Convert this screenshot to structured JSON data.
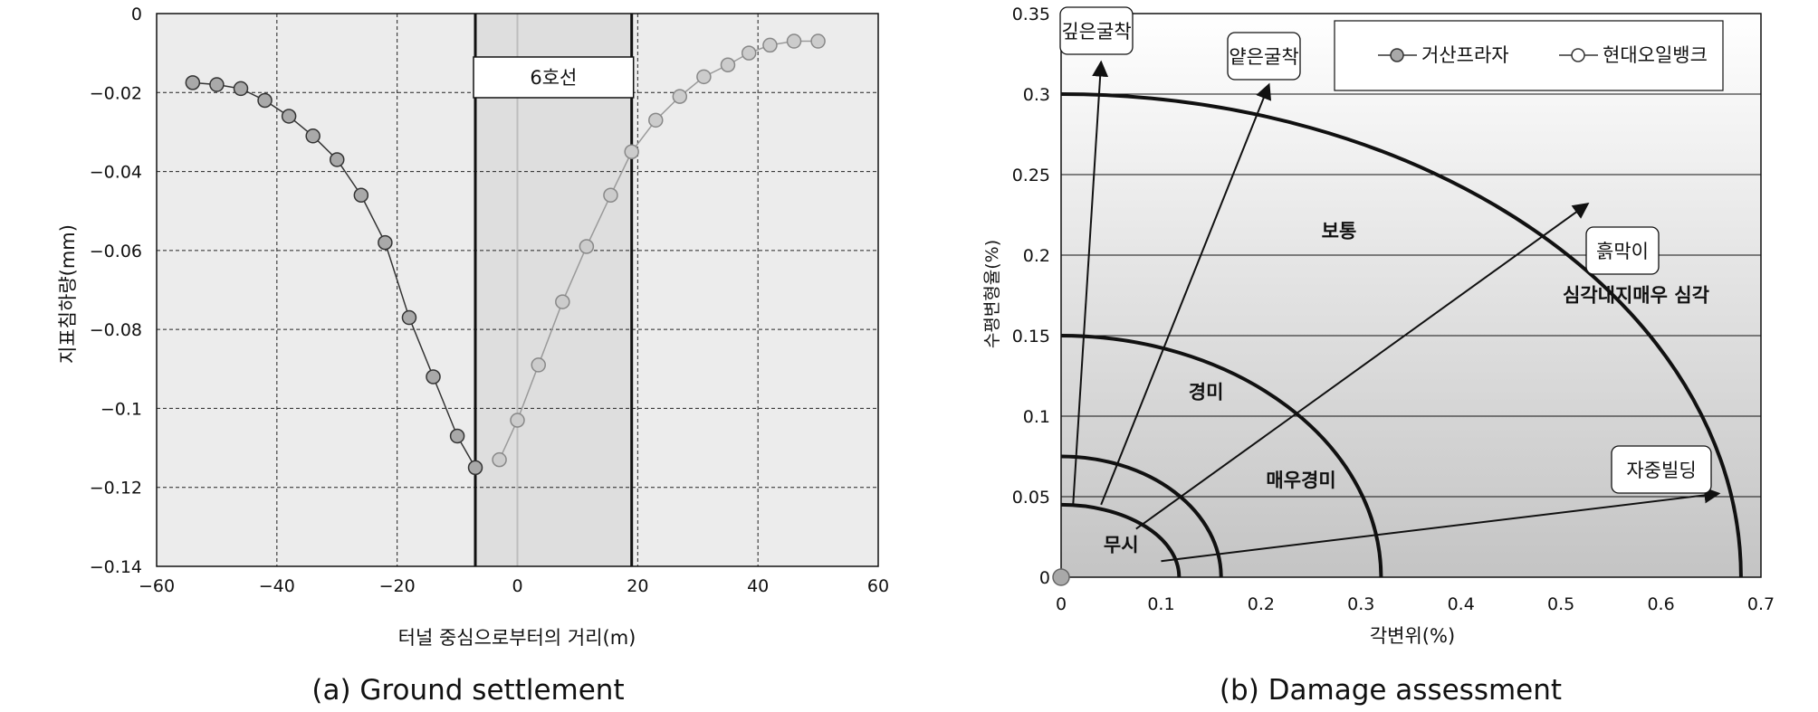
{
  "chart_data": [
    {
      "type": "line",
      "caption": "(a) Ground settlement",
      "xlabel": "터널 중심으로부터의 거리(m)",
      "ylabel": "지표침하량(mm)",
      "xlim": [
        -60,
        60
      ],
      "ylim": [
        -0.14,
        0
      ],
      "xticks": [
        "−60",
        "−40",
        "−20",
        "0",
        "20",
        "40",
        "60"
      ],
      "yticks": [
        "0",
        "−0.02",
        "−0.04",
        "−0.06",
        "−0.08",
        "−0.1",
        "−0.12",
        "−0.14"
      ],
      "grid": true,
      "tunnel_zone": {
        "label": "6호선",
        "x_range": [
          -7,
          19
        ],
        "center_x": 0
      },
      "series": [
        {
          "name": "",
          "marker_color": "#a9a9a9",
          "x": [
            -54,
            -50,
            -46,
            -42,
            -38,
            -34,
            -30,
            -26,
            -22,
            -18,
            -14,
            -10,
            -7
          ],
          "y": [
            -0.0175,
            -0.018,
            -0.019,
            -0.022,
            -0.026,
            -0.031,
            -0.037,
            -0.046,
            -0.058,
            -0.077,
            -0.092,
            -0.107,
            -0.115
          ]
        },
        {
          "name": "",
          "marker_color": "#cccccc",
          "x": [
            -3,
            0,
            3.5,
            7.5,
            11.5,
            15.5,
            19,
            23,
            27,
            31,
            35,
            38.5,
            42,
            46,
            50
          ],
          "y": [
            -0.113,
            -0.103,
            -0.089,
            -0.073,
            -0.059,
            -0.046,
            -0.035,
            -0.027,
            -0.021,
            -0.016,
            -0.013,
            -0.01,
            -0.008,
            -0.007,
            -0.007
          ]
        }
      ]
    },
    {
      "type": "scatter",
      "caption": "(b) Damage assessment",
      "xlabel": "각변위(%)",
      "ylabel": "수평변형율(%)",
      "xlim": [
        0,
        0.7
      ],
      "ylim": [
        0,
        0.35
      ],
      "xticks": [
        "0",
        "0.1",
        "0.2",
        "0.3",
        "0.4",
        "0.5",
        "0.6",
        "0.7"
      ],
      "yticks": [
        "0",
        "0.05",
        "0.1",
        "0.15",
        "0.2",
        "0.25",
        "0.3",
        "0.35"
      ],
      "legend": {
        "position": "top-right",
        "entries": [
          {
            "label": "거산프라자",
            "marker_color": "#a9a9a9"
          },
          {
            "label": "현대오일뱅크",
            "marker_color": "#ffffff"
          }
        ]
      },
      "zone_boundaries": [
        {
          "name": "무시",
          "x_max": 0.118,
          "y_max": 0.045
        },
        {
          "name": "매우경미",
          "x_max": 0.16,
          "y_max": 0.075
        },
        {
          "name": "경미",
          "x_max": 0.32,
          "y_max": 0.15
        },
        {
          "name": "보통",
          "x_max": 0.68,
          "y_max": 0.3
        }
      ],
      "zone_labels": [
        {
          "text": "무시",
          "x": 0.06,
          "y": 0.02
        },
        {
          "text": "매우경미",
          "x": 0.24,
          "y": 0.06
        },
        {
          "text": "경미",
          "x": 0.145,
          "y": 0.115
        },
        {
          "text": "보통",
          "x": 0.278,
          "y": 0.215
        },
        {
          "text": "심각내지매우 심각",
          "x": 0.575,
          "y": 0.175
        }
      ],
      "arrows": [
        {
          "label": "깊은굴착",
          "from": [
            0.012,
            0.045
          ],
          "to": [
            0.04,
            0.32
          ]
        },
        {
          "label": "얕은굴착",
          "from": [
            0.04,
            0.045
          ],
          "to": [
            0.208,
            0.306
          ]
        },
        {
          "label": "흙막이",
          "from": [
            0.075,
            0.03
          ],
          "to": [
            0.527,
            0.232
          ]
        },
        {
          "label": "자중빌딩",
          "from": [
            0.1,
            0.01
          ],
          "to": [
            0.658,
            0.052
          ]
        }
      ],
      "series": [
        {
          "name": "거산프라자",
          "x": [
            0
          ],
          "y": [
            0
          ]
        }
      ]
    }
  ]
}
